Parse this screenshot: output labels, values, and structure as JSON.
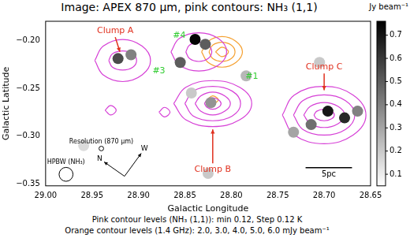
{
  "chart_data": {
    "type": "contour",
    "title": "Image: APEX 870 µm, pink contours: NH₃ (1,1)",
    "x_label": "Galactic Longitude",
    "y_label": "Galactic Latitude",
    "xlim": [
      29.0,
      28.65
    ],
    "xticks": [
      {
        "value": 29.0,
        "label": "29.00"
      },
      {
        "value": 28.95,
        "label": "28.95"
      },
      {
        "value": 28.9,
        "label": "28.90"
      },
      {
        "value": 28.85,
        "label": "28.85"
      },
      {
        "value": 28.8,
        "label": "28.80"
      },
      {
        "value": 28.75,
        "label": "28.75"
      },
      {
        "value": 28.7,
        "label": "28.70"
      },
      {
        "value": 28.65,
        "label": "28.65"
      }
    ],
    "ylim": [
      -0.352,
      -0.18
    ],
    "yticks": [
      {
        "value": -0.35,
        "label": "−0.35"
      },
      {
        "value": -0.3,
        "label": "−0.30"
      },
      {
        "value": -0.25,
        "label": "−0.25"
      },
      {
        "value": -0.2,
        "label": "−0.20"
      }
    ],
    "grid": false,
    "colorbar": {
      "label": "Jy beam⁻¹",
      "range": [
        0.05,
        0.76
      ],
      "ticks": [
        0.1,
        0.2,
        0.3,
        0.4,
        0.5,
        0.6,
        0.7
      ]
    },
    "image": [
      {
        "x": 28.922,
        "y": -0.219,
        "value": 0.55
      },
      {
        "x": 28.908,
        "y": -0.215,
        "value": 0.4
      },
      {
        "x": 28.839,
        "y": -0.199,
        "value": 0.75
      },
      {
        "x": 28.828,
        "y": -0.204,
        "value": 0.5
      },
      {
        "x": 28.855,
        "y": -0.223,
        "value": 0.5
      },
      {
        "x": 28.822,
        "y": -0.265,
        "value": 0.35
      },
      {
        "x": 28.696,
        "y": -0.274,
        "value": 0.7
      },
      {
        "x": 28.678,
        "y": -0.281,
        "value": 0.65
      },
      {
        "x": 28.714,
        "y": -0.288,
        "value": 0.45
      },
      {
        "x": 28.733,
        "y": -0.296,
        "value": 0.3
      },
      {
        "x": 28.664,
        "y": -0.274,
        "value": 0.4
      },
      {
        "x": 28.784,
        "y": -0.237,
        "value": 0.25
      },
      {
        "x": 28.843,
        "y": -0.255,
        "value": 0.2
      },
      {
        "x": 28.825,
        "y": -0.339,
        "value": 0.2
      },
      {
        "x": 28.705,
        "y": -0.223,
        "value": 0.2
      },
      {
        "x": 28.959,
        "y": -0.31,
        "value": 0.15
      }
    ],
    "contours": [
      {
        "color": "#d63fd6",
        "polygons": [
          [
            [
              28.862,
              -0.266
            ],
            [
              28.849,
              -0.249
            ],
            [
              28.82,
              -0.242
            ],
            [
              28.791,
              -0.249
            ],
            [
              28.778,
              -0.266
            ],
            [
              28.791,
              -0.283
            ],
            [
              28.82,
              -0.29
            ],
            [
              28.849,
              -0.283
            ]
          ],
          [
            [
              28.85,
              -0.266
            ],
            [
              28.841,
              -0.253
            ],
            [
              28.82,
              -0.248
            ],
            [
              28.799,
              -0.253
            ],
            [
              28.79,
              -0.266
            ],
            [
              28.799,
              -0.279
            ],
            [
              28.82,
              -0.284
            ],
            [
              28.841,
              -0.279
            ]
          ],
          [
            [
              28.839,
              -0.266
            ],
            [
              28.833,
              -0.258
            ],
            [
              28.82,
              -0.254
            ],
            [
              28.807,
              -0.258
            ],
            [
              28.801,
              -0.266
            ],
            [
              28.807,
              -0.274
            ],
            [
              28.82,
              -0.278
            ],
            [
              28.833,
              -0.274
            ]
          ],
          [
            [
              28.829,
              -0.266
            ],
            [
              28.826,
              -0.262
            ],
            [
              28.82,
              -0.26
            ],
            [
              28.814,
              -0.262
            ],
            [
              28.811,
              -0.266
            ],
            [
              28.814,
              -0.27
            ],
            [
              28.82,
              -0.272
            ],
            [
              28.826,
              -0.27
            ]
          ],
          [
            [
              28.745,
              -0.278
            ],
            [
              28.732,
              -0.257
            ],
            [
              28.7,
              -0.248
            ],
            [
              28.669,
              -0.257
            ],
            [
              28.655,
              -0.278
            ],
            [
              28.669,
              -0.299
            ],
            [
              28.7,
              -0.308
            ],
            [
              28.732,
              -0.299
            ]
          ],
          [
            [
              28.733,
              -0.278
            ],
            [
              28.723,
              -0.263
            ],
            [
              28.7,
              -0.257
            ],
            [
              28.677,
              -0.263
            ],
            [
              28.667,
              -0.278
            ],
            [
              28.677,
              -0.293
            ],
            [
              28.7,
              -0.299
            ],
            [
              28.723,
              -0.293
            ]
          ],
          [
            [
              28.722,
              -0.278
            ],
            [
              28.715,
              -0.269
            ],
            [
              28.7,
              -0.265
            ],
            [
              28.685,
              -0.269
            ],
            [
              28.678,
              -0.278
            ],
            [
              28.685,
              -0.287
            ],
            [
              28.7,
              -0.291
            ],
            [
              28.715,
              -0.287
            ]
          ],
          [
            [
              28.711,
              -0.278
            ],
            [
              28.708,
              -0.274
            ],
            [
              28.7,
              -0.272
            ],
            [
              28.692,
              -0.274
            ],
            [
              28.689,
              -0.278
            ],
            [
              28.692,
              -0.282
            ],
            [
              28.7,
              -0.284
            ],
            [
              28.708,
              -0.282
            ]
          ],
          [
            [
              28.947,
              -0.221
            ],
            [
              28.938,
              -0.206
            ],
            [
              28.917,
              -0.199
            ],
            [
              28.896,
              -0.206
            ],
            [
              28.887,
              -0.221
            ],
            [
              28.896,
              -0.236
            ],
            [
              28.917,
              -0.243
            ],
            [
              28.938,
              -0.236
            ]
          ],
          [
            [
              28.932,
              -0.221
            ],
            [
              28.928,
              -0.214
            ],
            [
              28.917,
              -0.211
            ],
            [
              28.906,
              -0.214
            ],
            [
              28.902,
              -0.221
            ],
            [
              28.906,
              -0.228
            ],
            [
              28.917,
              -0.231
            ],
            [
              28.928,
              -0.228
            ]
          ],
          [
            [
              28.865,
              -0.212
            ],
            [
              28.856,
              -0.198
            ],
            [
              28.835,
              -0.192
            ],
            [
              28.814,
              -0.198
            ],
            [
              28.805,
              -0.212
            ],
            [
              28.814,
              -0.226
            ],
            [
              28.835,
              -0.232
            ],
            [
              28.856,
              -0.226
            ]
          ],
          [
            [
              28.849,
              -0.212
            ],
            [
              28.845,
              -0.205
            ],
            [
              28.835,
              -0.202
            ],
            [
              28.825,
              -0.205
            ],
            [
              28.821,
              -0.212
            ],
            [
              28.825,
              -0.219
            ],
            [
              28.835,
              -0.222
            ],
            [
              28.845,
              -0.219
            ]
          ],
          [
            [
              28.878,
              -0.275
            ],
            [
              28.872,
              -0.27
            ],
            [
              28.866,
              -0.275
            ],
            [
              28.872,
              -0.28
            ]
          ],
          [
            [
              28.936,
              -0.273
            ],
            [
              28.93,
              -0.268
            ],
            [
              28.924,
              -0.273
            ],
            [
              28.93,
              -0.278
            ]
          ]
        ]
      },
      {
        "color": "#f5a030",
        "polygons": [
          [
            [
              28.832,
              -0.212
            ],
            [
              28.825,
              -0.201
            ],
            [
              28.81,
              -0.196
            ],
            [
              28.795,
              -0.201
            ],
            [
              28.788,
              -0.212
            ],
            [
              28.795,
              -0.223
            ],
            [
              28.81,
              -0.228
            ],
            [
              28.825,
              -0.223
            ]
          ],
          [
            [
              28.824,
              -0.212
            ],
            [
              28.82,
              -0.205
            ],
            [
              28.81,
              -0.202
            ],
            [
              28.8,
              -0.205
            ],
            [
              28.796,
              -0.212
            ],
            [
              28.8,
              -0.219
            ],
            [
              28.81,
              -0.222
            ],
            [
              28.82,
              -0.219
            ]
          ],
          [
            [
              28.817,
              -0.212
            ],
            [
              28.81,
              -0.207
            ],
            [
              28.803,
              -0.212
            ],
            [
              28.81,
              -0.217
            ]
          ],
          [
            [
              28.826,
              -0.262
            ],
            [
              28.82,
              -0.258
            ],
            [
              28.814,
              -0.262
            ],
            [
              28.82,
              -0.266
            ]
          ]
        ]
      }
    ],
    "annotations": [
      {
        "text": "Clump A",
        "x": 28.925,
        "y": -0.19,
        "color": "#e0301e",
        "arrow_to": [
          28.92,
          -0.212
        ]
      },
      {
        "text": "Clump B",
        "x": 28.82,
        "y": -0.335,
        "color": "#e0301e",
        "arrow_to": [
          28.82,
          -0.293
        ]
      },
      {
        "text": "Clump C",
        "x": 28.7,
        "y": -0.228,
        "color": "#e0301e",
        "arrow_to": [
          28.7,
          -0.252
        ]
      },
      {
        "text": "#4",
        "x": 28.856,
        "y": -0.195,
        "color": "#33cc33"
      },
      {
        "text": "#3",
        "x": 28.878,
        "y": -0.232,
        "color": "#33cc33"
      },
      {
        "text": "#1",
        "x": 28.778,
        "y": -0.238,
        "color": "#33cc33"
      }
    ],
    "scale_bar": {
      "label": "5pc",
      "x": [
        28.72,
        28.67
      ],
      "y": -0.333
    },
    "beams": [
      {
        "label": "Resolution (870 µm)",
        "x": 28.94,
        "y": -0.313,
        "diameter": 0.005
      },
      {
        "label": "HPBW (NH₃)",
        "x": 28.978,
        "y": -0.34,
        "diameter": 0.015
      }
    ],
    "compass": {
      "origin": [
        28.915,
        -0.342
      ],
      "arrows": [
        {
          "label": "N",
          "to": [
            28.937,
            -0.327
          ]
        },
        {
          "label": "W",
          "to": [
            28.897,
            -0.318
          ]
        }
      ]
    },
    "footnotes": [
      "Pink contour levels (NH₃ (1,1)): min 0.12, Step 0.12 K",
      "Orange contour levels (1.4 GHz): 2.0, 3.0, 4.0, 5.0, 6.0 mJy beam⁻¹"
    ]
  }
}
